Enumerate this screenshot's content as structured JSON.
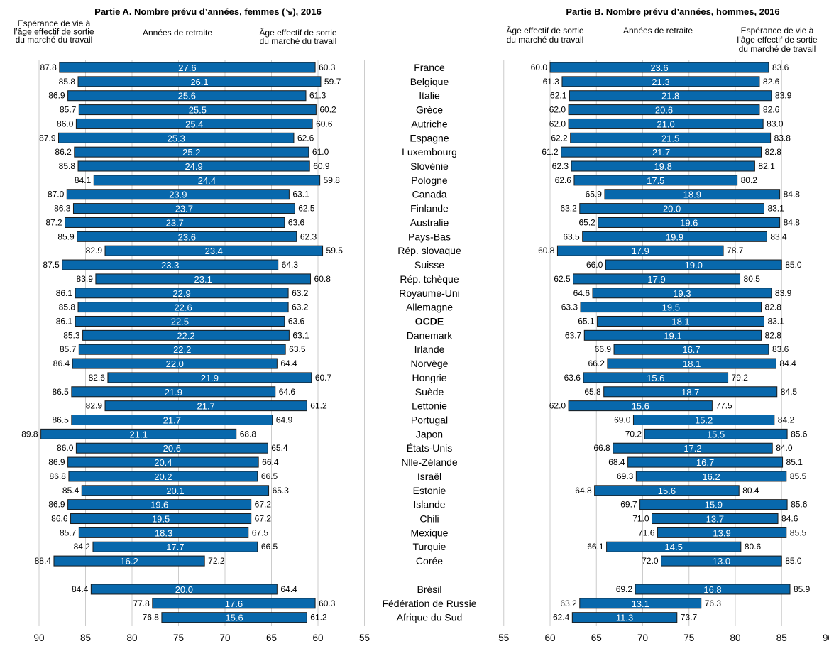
{
  "chart_data": [
    {
      "type": "bar",
      "title": "Partie A. Nombre prévu d’années, femmes (↘), 2016",
      "headers": {
        "left": [
          "Espérance de vie à",
          "l’âge effectif de sortie",
          "du marché du travail"
        ],
        "middle": [
          "Années de retraite"
        ],
        "right": [
          "Âge effectif de sortie",
          "du marché du travail"
        ]
      },
      "xlim": [
        90,
        55
      ],
      "xticks": [
        "90",
        "85",
        "80",
        "75",
        "70",
        "65",
        "60",
        "55"
      ],
      "grid": true,
      "bar_color": "#0868ac",
      "series_fields": [
        "Espérance de vie à l’âge effectif de sortie du marché du travail",
        "Années de retraite",
        "Âge effectif de sortie du marché du travail"
      ],
      "rows": [
        {
          "country": "France",
          "life_exp": "87.8",
          "years": "27.6",
          "exit_age": "60.3"
        },
        {
          "country": "Belgique",
          "life_exp": "85.8",
          "years": "26.1",
          "exit_age": "59.7"
        },
        {
          "country": "Italie",
          "life_exp": "86.9",
          "years": "25.6",
          "exit_age": "61.3"
        },
        {
          "country": "Grèce",
          "life_exp": "85.7",
          "years": "25.5",
          "exit_age": "60.2"
        },
        {
          "country": "Autriche",
          "life_exp": "86.0",
          "years": "25.4",
          "exit_age": "60.6"
        },
        {
          "country": "Espagne",
          "life_exp": "87.9",
          "years": "25.3",
          "exit_age": "62.6"
        },
        {
          "country": "Luxembourg",
          "life_exp": "86.2",
          "years": "25.2",
          "exit_age": "61.0"
        },
        {
          "country": "Slovénie",
          "life_exp": "85.8",
          "years": "24.9",
          "exit_age": "60.9"
        },
        {
          "country": "Pologne",
          "life_exp": "84.1",
          "years": "24.4",
          "exit_age": "59.8"
        },
        {
          "country": "Canada",
          "life_exp": "87.0",
          "years": "23.9",
          "exit_age": "63.1"
        },
        {
          "country": "Finlande",
          "life_exp": "86.3",
          "years": "23.7",
          "exit_age": "62.5"
        },
        {
          "country": "Australie",
          "life_exp": "87.2",
          "years": "23.7",
          "exit_age": "63.6"
        },
        {
          "country": "Pays-Bas",
          "life_exp": "85.9",
          "years": "23.6",
          "exit_age": "62.3"
        },
        {
          "country": "Rép. slovaque",
          "life_exp": "82.9",
          "years": "23.4",
          "exit_age": "59.5"
        },
        {
          "country": "Suisse",
          "life_exp": "87.5",
          "years": "23.3",
          "exit_age": "64.3"
        },
        {
          "country": "Rép. tchèque",
          "life_exp": "83.9",
          "years": "23.1",
          "exit_age": "60.8"
        },
        {
          "country": "Royaume-Uni",
          "life_exp": "86.1",
          "years": "22.9",
          "exit_age": "63.2"
        },
        {
          "country": "Allemagne",
          "life_exp": "85.8",
          "years": "22.6",
          "exit_age": "63.2"
        },
        {
          "country": "OCDE",
          "life_exp": "86.1",
          "years": "22.5",
          "exit_age": "63.6",
          "bold": true
        },
        {
          "country": "Danemark",
          "life_exp": "85.3",
          "years": "22.2",
          "exit_age": "63.1"
        },
        {
          "country": "Irlande",
          "life_exp": "85.7",
          "years": "22.2",
          "exit_age": "63.5"
        },
        {
          "country": "Norvège",
          "life_exp": "86.4",
          "years": "22.0",
          "exit_age": "64.4"
        },
        {
          "country": "Hongrie",
          "life_exp": "82.6",
          "years": "21.9",
          "exit_age": "60.7"
        },
        {
          "country": "Suède",
          "life_exp": "86.5",
          "years": "21.9",
          "exit_age": "64.6"
        },
        {
          "country": "Lettonie",
          "life_exp": "82.9",
          "years": "21.7",
          "exit_age": "61.2"
        },
        {
          "country": "Portugal",
          "life_exp": "86.5",
          "years": "21.7",
          "exit_age": "64.9"
        },
        {
          "country": "Japon",
          "life_exp": "89.8",
          "years": "21.1",
          "exit_age": "68.8"
        },
        {
          "country": "États-Unis",
          "life_exp": "86.0",
          "years": "20.6",
          "exit_age": "65.4"
        },
        {
          "country": "Nlle-Zélande",
          "life_exp": "86.9",
          "years": "20.4",
          "exit_age": "66.4"
        },
        {
          "country": "Israël",
          "life_exp": "86.8",
          "years": "20.2",
          "exit_age": "66.5"
        },
        {
          "country": "Estonie",
          "life_exp": "85.4",
          "years": "20.1",
          "exit_age": "65.3"
        },
        {
          "country": "Islande",
          "life_exp": "86.9",
          "years": "19.6",
          "exit_age": "67.2"
        },
        {
          "country": "Chili",
          "life_exp": "86.6",
          "years": "19.5",
          "exit_age": "67.2"
        },
        {
          "country": "Mexique",
          "life_exp": "85.7",
          "years": "18.3",
          "exit_age": "67.5"
        },
        {
          "country": "Turquie",
          "life_exp": "84.2",
          "years": "17.7",
          "exit_age": "66.5"
        },
        {
          "country": "Corée",
          "life_exp": "88.4",
          "years": "16.2",
          "exit_age": "72.2"
        },
        {
          "country": "Brésil",
          "life_exp": "84.4",
          "years": "20.0",
          "exit_age": "64.4",
          "gap_before": true
        },
        {
          "country": "Fédération de Russie",
          "life_exp": "77.8",
          "years": "17.6",
          "exit_age": "60.3"
        },
        {
          "country": "Afrique du Sud",
          "life_exp": "76.8",
          "years": "15.6",
          "exit_age": "61.2"
        }
      ]
    },
    {
      "type": "bar",
      "title": "Partie B. Nombre prévu d’années, hommes, 2016",
      "headers": {
        "left": [
          "Âge effectif de sortie",
          "du marché du travail"
        ],
        "middle": [
          "Années de retraite"
        ],
        "right": [
          "Espérance de vie à",
          "l’âge effectif de sortie",
          "du marché de travail"
        ]
      },
      "xlim": [
        55,
        90
      ],
      "xticks": [
        "55",
        "60",
        "65",
        "70",
        "75",
        "80",
        "85",
        "90"
      ],
      "grid": true,
      "bar_color": "#0868ac",
      "series_fields": [
        "Âge effectif de sortie du marché du travail",
        "Années de retraite",
        "Espérance de vie à l’âge effectif de sortie du marché de travail"
      ],
      "rows": [
        {
          "country": "France",
          "exit_age": "60.0",
          "years": "23.6",
          "life_exp": "83.6"
        },
        {
          "country": "Belgique",
          "exit_age": "61.3",
          "years": "21.3",
          "life_exp": "82.6"
        },
        {
          "country": "Italie",
          "exit_age": "62.1",
          "years": "21.8",
          "life_exp": "83.9"
        },
        {
          "country": "Grèce",
          "exit_age": "62.0",
          "years": "20.6",
          "life_exp": "82.6"
        },
        {
          "country": "Autriche",
          "exit_age": "62.0",
          "years": "21.0",
          "life_exp": "83.0"
        },
        {
          "country": "Espagne",
          "exit_age": "62.2",
          "years": "21.5",
          "life_exp": "83.8"
        },
        {
          "country": "Luxembourg",
          "exit_age": "61.2",
          "years": "21.7",
          "life_exp": "82.8"
        },
        {
          "country": "Slovénie",
          "exit_age": "62.3",
          "years": "19.8",
          "life_exp": "82.1"
        },
        {
          "country": "Pologne",
          "exit_age": "62.6",
          "years": "17.5",
          "life_exp": "80.2"
        },
        {
          "country": "Canada",
          "exit_age": "65.9",
          "years": "18.9",
          "life_exp": "84.8"
        },
        {
          "country": "Finlande",
          "exit_age": "63.2",
          "years": "20.0",
          "life_exp": "83.1"
        },
        {
          "country": "Australie",
          "exit_age": "65.2",
          "years": "19.6",
          "life_exp": "84.8"
        },
        {
          "country": "Pays-Bas",
          "exit_age": "63.5",
          "years": "19.9",
          "life_exp": "83.4"
        },
        {
          "country": "Rép. slovaque",
          "exit_age": "60.8",
          "years": "17.9",
          "life_exp": "78.7"
        },
        {
          "country": "Suisse",
          "exit_age": "66.0",
          "years": "19.0",
          "life_exp": "85.0"
        },
        {
          "country": "Rép. tchèque",
          "exit_age": "62.5",
          "years": "17.9",
          "life_exp": "80.5"
        },
        {
          "country": "Royaume-Uni",
          "exit_age": "64.6",
          "years": "19.3",
          "life_exp": "83.9"
        },
        {
          "country": "Allemagne",
          "exit_age": "63.3",
          "years": "19.5",
          "life_exp": "82.8"
        },
        {
          "country": "OCDE",
          "exit_age": "65.1",
          "years": "18.1",
          "life_exp": "83.1"
        },
        {
          "country": "Danemark",
          "exit_age": "63.7",
          "years": "19.1",
          "life_exp": "82.8"
        },
        {
          "country": "Irlande",
          "exit_age": "66.9",
          "years": "16.7",
          "life_exp": "83.6"
        },
        {
          "country": "Norvège",
          "exit_age": "66.2",
          "years": "18.1",
          "life_exp": "84.4"
        },
        {
          "country": "Hongrie",
          "exit_age": "63.6",
          "years": "15.6",
          "life_exp": "79.2"
        },
        {
          "country": "Suède",
          "exit_age": "65.8",
          "years": "18.7",
          "life_exp": "84.5"
        },
        {
          "country": "Lettonie",
          "exit_age": "62.0",
          "years": "15.6",
          "life_exp": "77.5"
        },
        {
          "country": "Portugal",
          "exit_age": "69.0",
          "years": "15.2",
          "life_exp": "84.2"
        },
        {
          "country": "Japon",
          "exit_age": "70.2",
          "years": "15.5",
          "life_exp": "85.6"
        },
        {
          "country": "États-Unis",
          "exit_age": "66.8",
          "years": "17.2",
          "life_exp": "84.0"
        },
        {
          "country": "Nlle-Zélande",
          "exit_age": "68.4",
          "years": "16.7",
          "life_exp": "85.1"
        },
        {
          "country": "Israël",
          "exit_age": "69.3",
          "years": "16.2",
          "life_exp": "85.5"
        },
        {
          "country": "Estonie",
          "exit_age": "64.8",
          "years": "15.6",
          "life_exp": "80.4"
        },
        {
          "country": "Islande",
          "exit_age": "69.7",
          "years": "15.9",
          "life_exp": "85.6"
        },
        {
          "country": "Chili",
          "exit_age": "71.0",
          "years": "13.7",
          "life_exp": "84.6"
        },
        {
          "country": "Mexique",
          "exit_age": "71.6",
          "years": "13.9",
          "life_exp": "85.5"
        },
        {
          "country": "Turquie",
          "exit_age": "66.1",
          "years": "14.5",
          "life_exp": "80.6"
        },
        {
          "country": "Corée",
          "exit_age": "72.0",
          "years": "13.0",
          "life_exp": "85.0"
        },
        {
          "country": "Brésil",
          "exit_age": "69.2",
          "years": "16.8",
          "life_exp": "85.9"
        },
        {
          "country": "Fédération de Russie",
          "exit_age": "63.2",
          "years": "13.1",
          "life_exp": "76.3"
        },
        {
          "country": "Afrique du Sud",
          "exit_age": "62.4",
          "years": "11.3",
          "life_exp": "73.7"
        }
      ]
    }
  ]
}
